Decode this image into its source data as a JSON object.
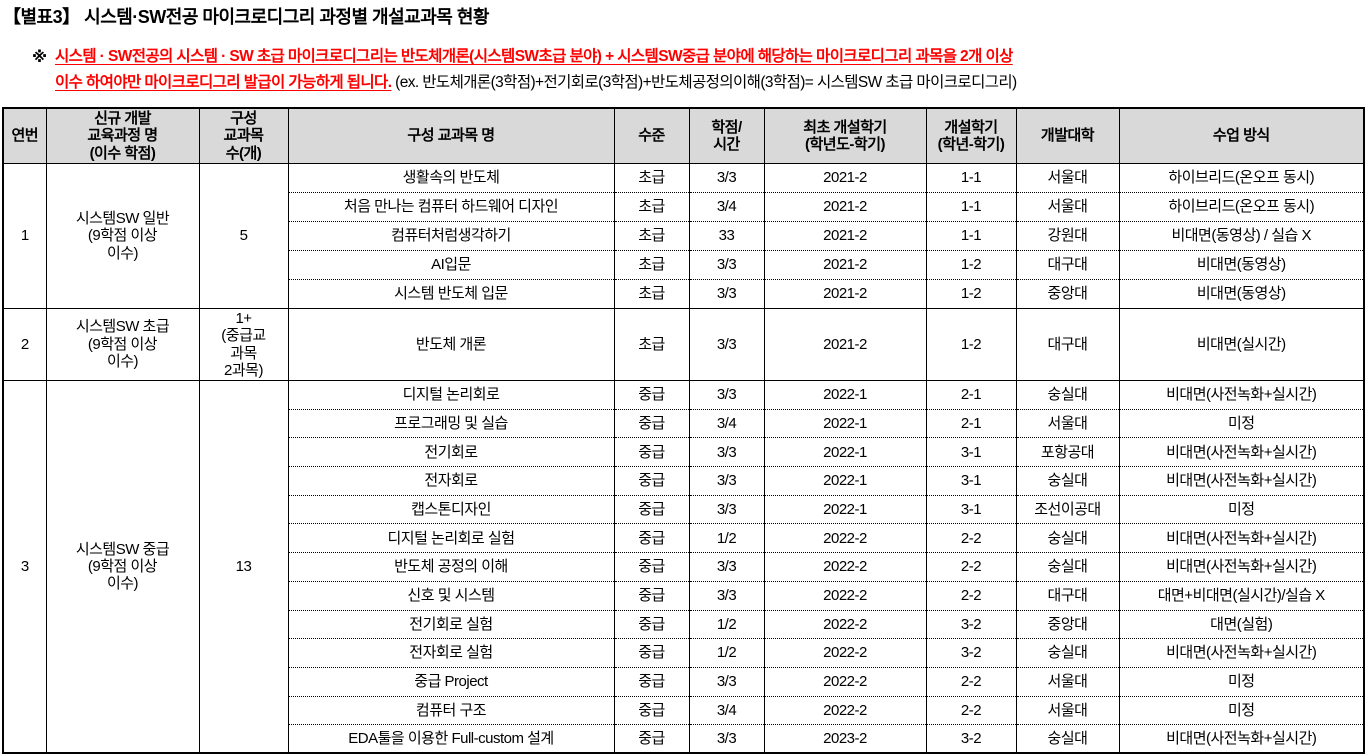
{
  "page": {
    "title": "【별표3】 시스템·SW전공 마이크로디그리 과정별 개설교과목 현황"
  },
  "note": {
    "marker": "※",
    "line1_red": "시스템 · SW전공의 시스템 · SW 초급 마이크로디그리는 반도체개론(시스템SW초급 분야) + 시스템SW중급 분야에 해당하는 마이크로디그리 과목을 2개 이상",
    "line2_red": "이수 하여야만 마이크로디그리 발급이 가능하게 됩니다.",
    "line2_black": " (ex. 반도체개론(3학점)+전기회로(3학점)+반도체공정의이해(3학점)= 시스템SW 초급 마이크로디그리)"
  },
  "table": {
    "headers": [
      "연번",
      "신규 개발\n교육과정 명\n(이수 학점)",
      "구성\n교과목\n수(개)",
      "구성 교과목 명",
      "수준",
      "학점/\n시간",
      "최초 개설학기\n(학년도-학기)",
      "개설학기\n(학년-학기)",
      "개발대학",
      "수업 방식"
    ],
    "groups": [
      {
        "no": "1",
        "program": "시스템SW 일반\n(9학점 이상\n이수)",
        "count": "5",
        "courses": [
          [
            "생활속의 반도체",
            "초급",
            "3/3",
            "2021-2",
            "1-1",
            "서울대",
            "하이브리드(온오프 동시)"
          ],
          [
            "처음 만나는 컴퓨터 하드웨어 디자인",
            "초급",
            "3/4",
            "2021-2",
            "1-1",
            "서울대",
            "하이브리드(온오프 동시)"
          ],
          [
            "컴퓨터처럼생각하기",
            "초급",
            "33",
            "2021-2",
            "1-1",
            "강원대",
            "비대면(동영상) / 실습 X"
          ],
          [
            "AI입문",
            "초급",
            "3/3",
            "2021-2",
            "1-2",
            "대구대",
            "비대면(동영상)"
          ],
          [
            "시스템 반도체 입문",
            "초급",
            "3/3",
            "2021-2",
            "1-2",
            "중앙대",
            "비대면(동영상)"
          ]
        ]
      },
      {
        "no": "2",
        "program": "시스템SW 초급\n(9학점 이상\n이수)",
        "count": "1+\n(중급교\n과목\n2과목)",
        "courses": [
          [
            "반도체 개론",
            "초급",
            "3/3",
            "2021-2",
            "1-2",
            "대구대",
            "비대면(실시간)"
          ]
        ]
      },
      {
        "no": "3",
        "program": "시스템SW 중급\n(9학점 이상\n이수)",
        "count": "13",
        "courses": [
          [
            "디지털 논리회로",
            "중급",
            "3/3",
            "2022-1",
            "2-1",
            "숭실대",
            "비대면(사전녹화+실시간)"
          ],
          [
            "프로그래밍 및 실습",
            "중급",
            "3/4",
            "2022-1",
            "2-1",
            "서울대",
            "미정"
          ],
          [
            "전기회로",
            "중급",
            "3/3",
            "2022-1",
            "3-1",
            "포항공대",
            "비대면(사전녹화+실시간)"
          ],
          [
            "전자회로",
            "중급",
            "3/3",
            "2022-1",
            "3-1",
            "숭실대",
            "비대면(사전녹화+실시간)"
          ],
          [
            "캡스톤디자인",
            "중급",
            "3/3",
            "2022-1",
            "3-1",
            "조선이공대",
            "미정"
          ],
          [
            "디지털 논리회로 실험",
            "중급",
            "1/2",
            "2022-2",
            "2-2",
            "숭실대",
            "비대면(사전녹화+실시간)"
          ],
          [
            "반도체 공정의 이해",
            "중급",
            "3/3",
            "2022-2",
            "2-2",
            "숭실대",
            "비대면(사전녹화+실시간)"
          ],
          [
            "신호 및 시스템",
            "중급",
            "3/3",
            "2022-2",
            "2-2",
            "대구대",
            "대면+비대면(실시간)/실습 X"
          ],
          [
            "전기회로 실험",
            "중급",
            "1/2",
            "2022-2",
            "3-2",
            "중앙대",
            "대면(실험)"
          ],
          [
            "전자회로 실험",
            "중급",
            "1/2",
            "2022-2",
            "3-2",
            "숭실대",
            "비대면(사전녹화+실시간)"
          ],
          [
            "중급 Project",
            "중급",
            "3/3",
            "2022-2",
            "2-2",
            "서울대",
            "미정"
          ],
          [
            "컴퓨터 구조",
            "중급",
            "3/4",
            "2022-2",
            "2-2",
            "서울대",
            "미정"
          ],
          [
            "EDA툴을 이용한 Full-custom 설계",
            "중급",
            "3/3",
            "2023-2",
            "3-2",
            "숭실대",
            "비대면(사전녹화+실시간)"
          ]
        ]
      }
    ]
  },
  "colors": {
    "note_red": "#ff0000",
    "header_bg": "#d9d9d9",
    "border": "#000000"
  }
}
